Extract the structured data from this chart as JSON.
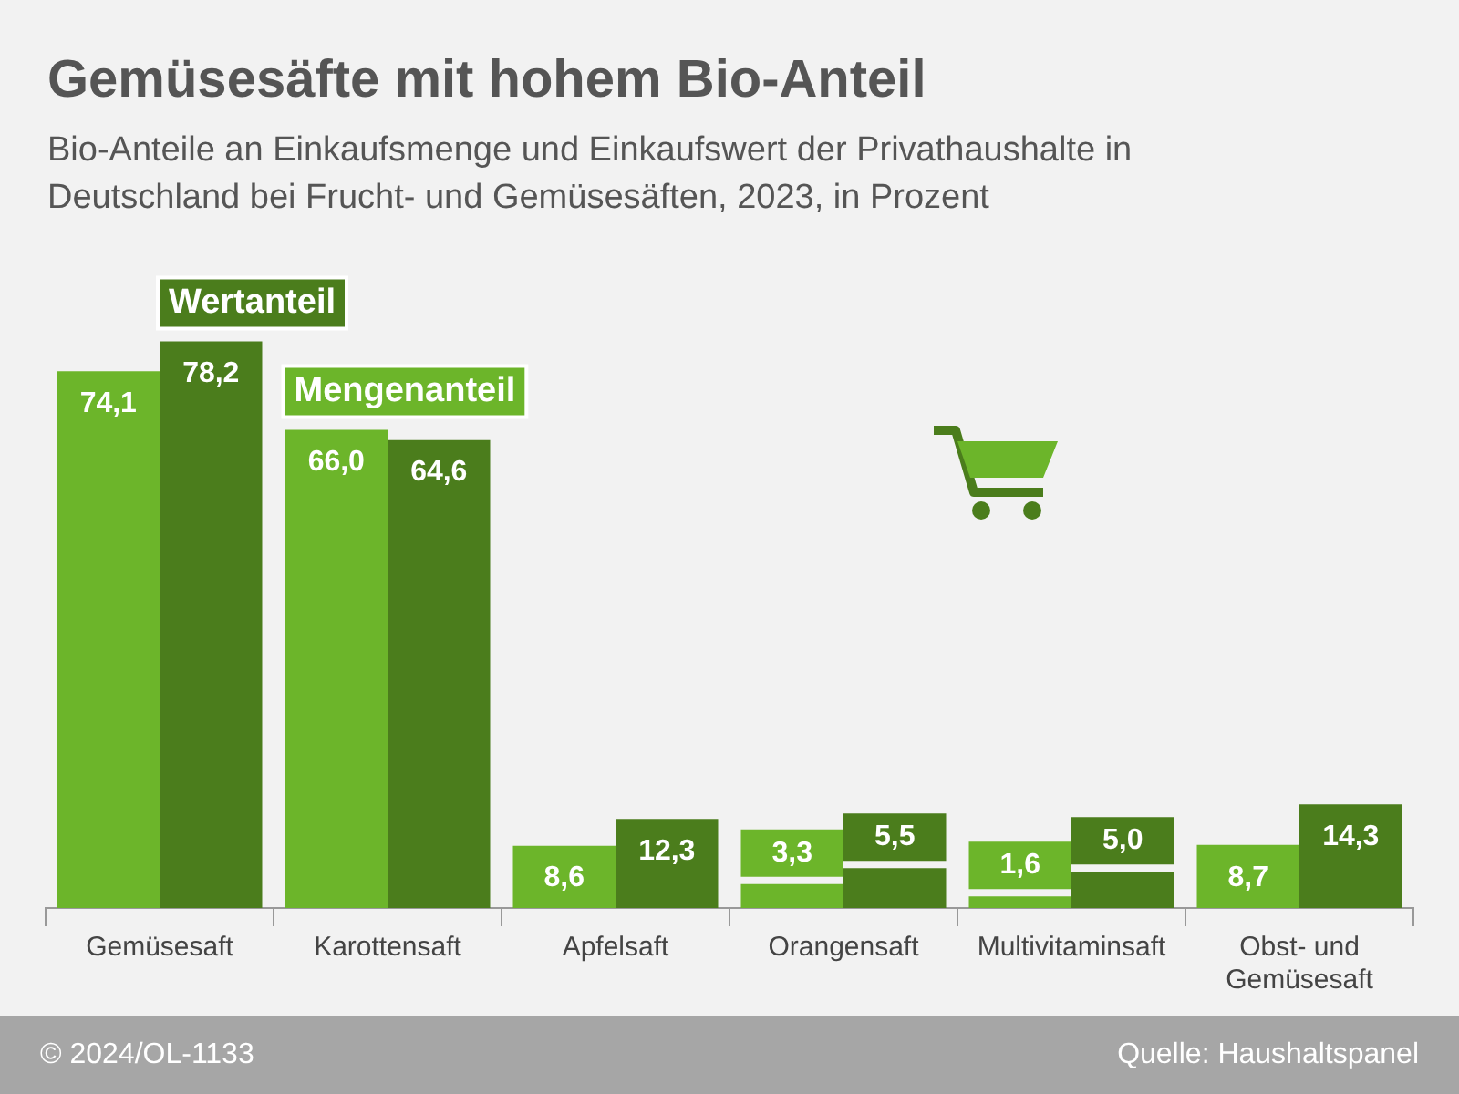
{
  "chart_data": {
    "type": "bar",
    "title": "Gemüsesäfte mit hohem Bio-Anteil",
    "subtitle": "Bio-Anteile an Einkaufsmenge und Einkaufswert der Privathaushalte in Deutschland bei Frucht- und Gemüsesäften, 2023, in Prozent",
    "categories": [
      "Gemüsesaft",
      "Karottensaft",
      "Apfelsaft",
      "Orangensaft",
      "Multivitaminsaft",
      "Obst- und Gemüsesaft"
    ],
    "series": [
      {
        "name": "Mengenanteil",
        "color": "#6cb52a",
        "values": [
          74.1,
          66.0,
          8.6,
          3.3,
          1.6,
          8.7
        ],
        "value_labels": [
          "74,1",
          "66,0",
          "8,6",
          "3,3",
          "1,6",
          "8,7"
        ]
      },
      {
        "name": "Wertanteil",
        "color": "#4b7d1c",
        "values": [
          78.2,
          64.6,
          12.3,
          5.5,
          5.0,
          14.3
        ],
        "value_labels": [
          "78,2",
          "64,6",
          "12,3",
          "5,5",
          "5,0",
          "14,3"
        ]
      }
    ],
    "annotations": [
      "© 2024/OL-1133",
      "Quelle: Haushaltspanel"
    ]
  }
}
